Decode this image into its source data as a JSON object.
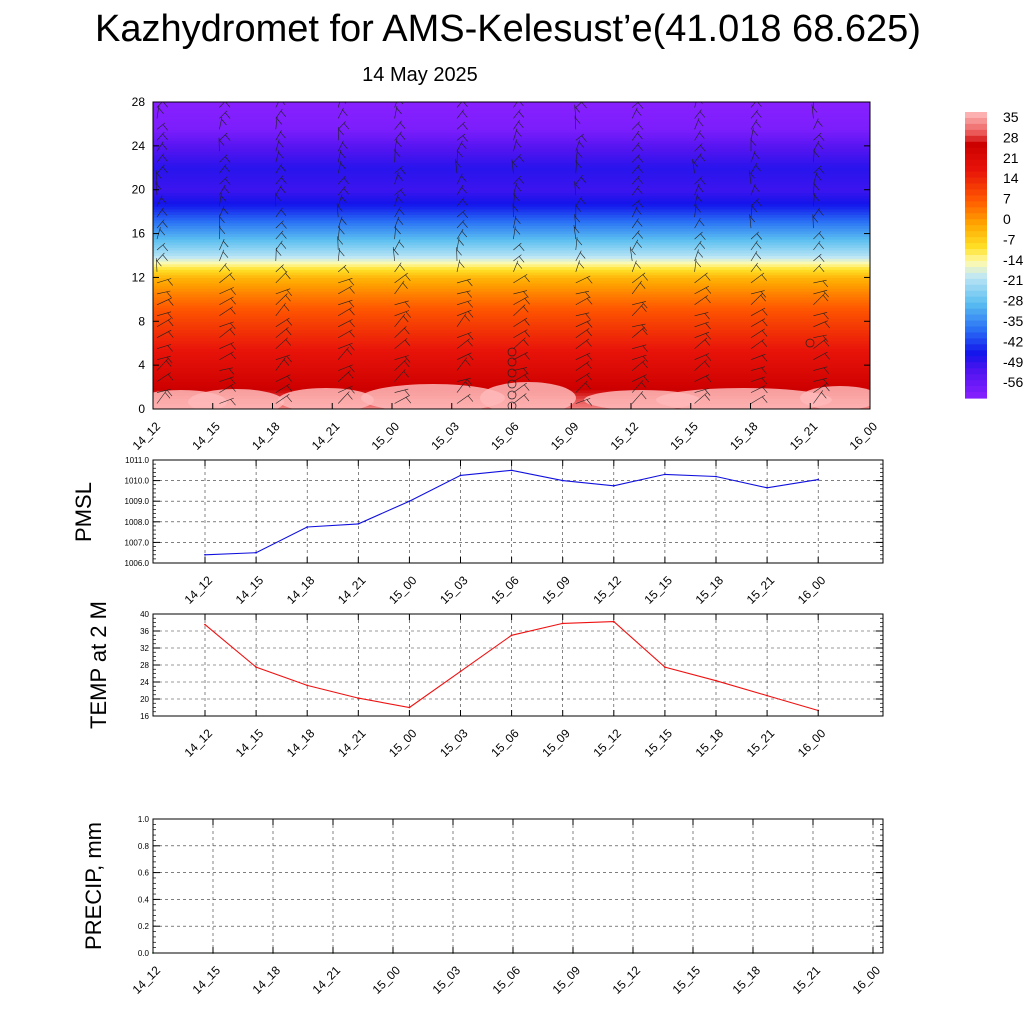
{
  "title": "Kazhydromet for AMS-Kelesust’e(41.018 68.625)",
  "subtitle": "14 May 2025",
  "colors": {
    "pmsl_line": "#1010dd",
    "temp_line": "#ee1111",
    "precip_line": "#106010",
    "grid": "#333333"
  },
  "chart_data": [
    {
      "id": "upper_air",
      "type": "heatmap",
      "xticks": [
        "14_12",
        "14_15",
        "14_18",
        "14_21",
        "15_00",
        "15_03",
        "15_06",
        "15_09",
        "15_12",
        "15_15",
        "15_18",
        "15_21",
        "16_00"
      ],
      "ylim": [
        0,
        28
      ],
      "yticks": [
        0,
        4,
        8,
        12,
        16,
        20,
        24,
        28
      ],
      "colorbar_labels": [
        "35",
        "28",
        "21",
        "14",
        "7",
        "0",
        "-7",
        "-14",
        "-21",
        "-28",
        "-35",
        "-42",
        "-49",
        "-56"
      ],
      "colorbar_range": [
        -59,
        38
      ],
      "overlay": "wind barbs"
    },
    {
      "id": "pmsl",
      "type": "line",
      "ylabel": "PMSL",
      "ylim": [
        1006.0,
        1011.0
      ],
      "yticks": [
        "1006.0",
        "1007.0",
        "1008.0",
        "1009.0",
        "1010.0",
        "1011.0"
      ],
      "x": [
        "14_12",
        "14_15",
        "14_18",
        "14_21",
        "15_00",
        "15_03",
        "15_06",
        "15_09",
        "15_12",
        "15_15",
        "15_18",
        "15_21",
        "16_00"
      ],
      "values": [
        1006.4,
        1006.5,
        1007.75,
        1007.9,
        1009.0,
        1010.25,
        1010.5,
        1010.0,
        1009.75,
        1010.3,
        1010.2,
        1009.65,
        1010.05
      ],
      "grid": true
    },
    {
      "id": "temp",
      "type": "line",
      "ylabel": "TEMP at 2 M",
      "ylim": [
        16,
        40
      ],
      "yticks": [
        "16",
        "20",
        "24",
        "28",
        "32",
        "36",
        "40"
      ],
      "x": [
        "14_12",
        "14_15",
        "14_18",
        "14_21",
        "15_00",
        "15_03",
        "15_06",
        "15_09",
        "15_12",
        "15_15",
        "15_18",
        "15_21",
        "16_00"
      ],
      "values": [
        37.5,
        27.5,
        23.2,
        20.2,
        18.0,
        26.5,
        35.0,
        37.8,
        38.2,
        27.5,
        24.3,
        20.8,
        17.3
      ],
      "grid": true
    },
    {
      "id": "precip",
      "type": "line",
      "ylabel": "PRECIP, mm",
      "ylim": [
        0.0,
        1.0
      ],
      "yticks": [
        "0.0",
        "0.2",
        "0.4",
        "0.6",
        "0.8",
        "1.0"
      ],
      "x": [
        "14_12",
        "14_15",
        "14_18",
        "14_21",
        "15_00",
        "15_03",
        "15_06",
        "15_09",
        "15_12",
        "15_15",
        "15_18",
        "15_21",
        "16_00"
      ],
      "values": [
        0,
        0,
        0,
        0,
        0,
        0,
        0,
        0,
        0,
        0,
        0,
        0,
        0
      ],
      "grid": true
    }
  ]
}
